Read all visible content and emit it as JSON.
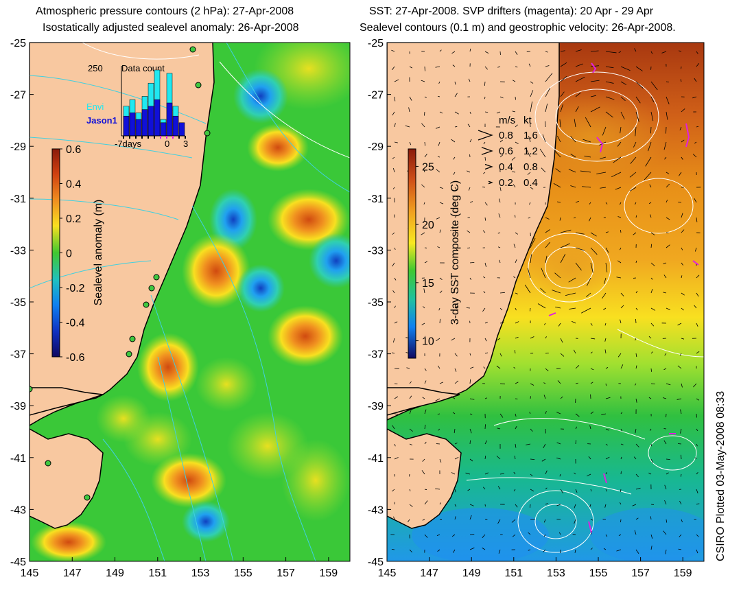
{
  "left_panel": {
    "title_line1": "Atmospheric pressure contours (2 hPa): 27-Apr-2008",
    "title_line2": "Isostatically adjusted sealevel anomaly: 26-Apr-2008",
    "colorbar": {
      "label": "Sealevel anomaly (m)",
      "ticks": [
        "0.6",
        "0.4",
        "0.2",
        "0",
        "-0.2",
        "-0.4",
        "-0.6"
      ],
      "range": [
        -0.6,
        0.6
      ]
    },
    "inset": {
      "title": "Data count",
      "ymax_label": "250",
      "legend_envi": "Envi",
      "legend_jason": "Jason1",
      "x_labels": [
        "-7days",
        "0",
        "3"
      ],
      "envi_counts": [
        0.45,
        0.55,
        0.35,
        0.6,
        0.8,
        1.0,
        0.25,
        0.95,
        0.45,
        0.0
      ],
      "jason_counts": [
        0.3,
        0.35,
        0.25,
        0.4,
        0.45,
        0.55,
        0.2,
        0.5,
        0.3,
        0.2
      ]
    }
  },
  "right_panel": {
    "title_line1": "SST: 27-Apr-2008. SVP drifters (magenta): 20 Apr - 29 Apr",
    "title_line2": "Sealevel contours (0.1 m) and geostrophic velocity: 26-Apr-2008.",
    "colorbar": {
      "label": "3-day SST composite (deg C)",
      "ticks": [
        "25",
        "20",
        "15",
        "10"
      ],
      "range": [
        8.5,
        26.5
      ]
    },
    "velocity_legend": {
      "header_ms": "m/s",
      "header_kt": "kt",
      "rows": [
        {
          "ms": "0.8",
          "kt": "1.6"
        },
        {
          "ms": "0.6",
          "kt": "1.2"
        },
        {
          "ms": "0.4",
          "kt": "0.8"
        },
        {
          "ms": "0.2",
          "kt": "0.4"
        }
      ]
    }
  },
  "axes": {
    "lon_ticks": [
      "145",
      "147",
      "149",
      "151",
      "153",
      "155",
      "157",
      "159"
    ],
    "lat_ticks": [
      "-25",
      "-27",
      "-29",
      "-31",
      "-33",
      "-35",
      "-37",
      "-39",
      "-41",
      "-43",
      "-45"
    ],
    "lon_range": [
      145,
      160
    ],
    "lat_range": [
      -45,
      -25
    ]
  },
  "credit": "CSIRO Plotted 03-May-2008 08:33",
  "colors": {
    "land": "#f8c8a0",
    "ocean_green": "#30c830",
    "coast": "#000000",
    "pressure_contour": "#40d0e0",
    "envi": "#20e8f0",
    "jason": "#1010d8",
    "drifter": "#e020e0"
  }
}
